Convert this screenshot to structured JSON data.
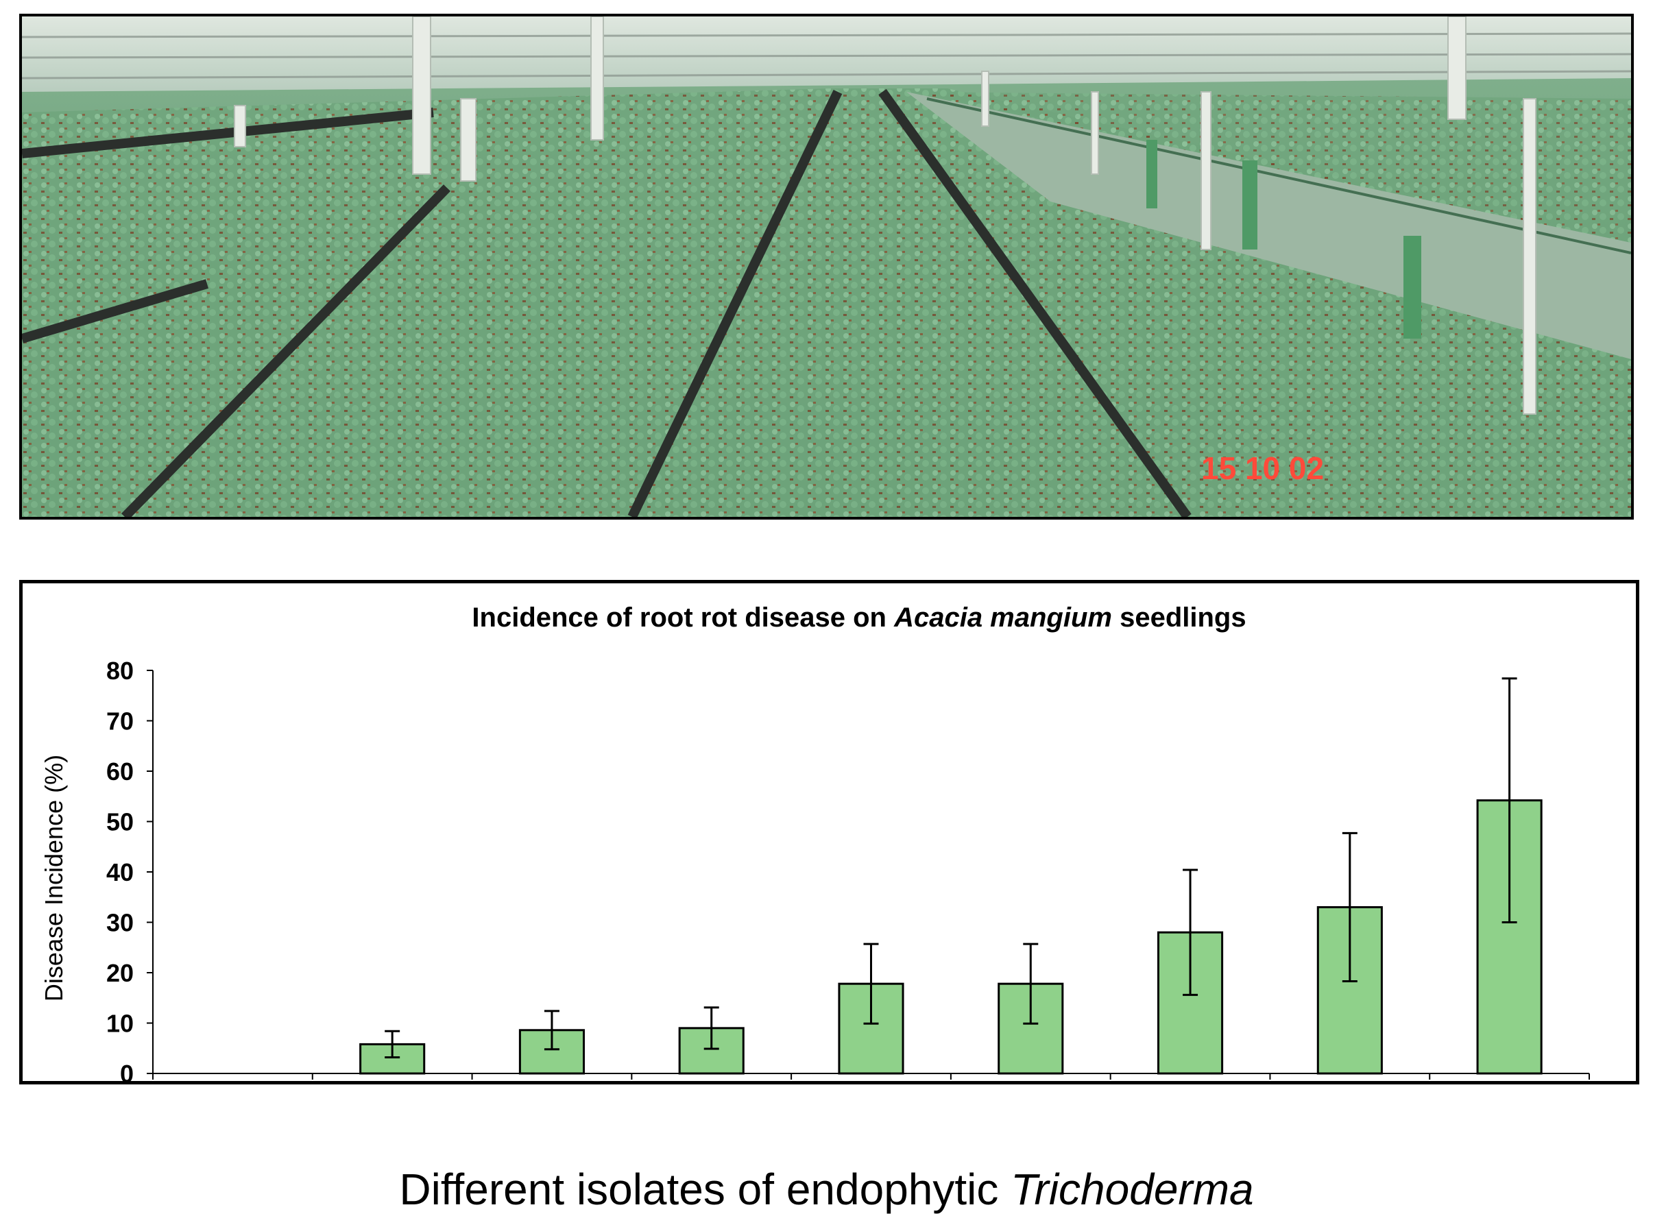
{
  "photo": {
    "description_icon": "nursery-photo",
    "date_stamp": "15 10 02"
  },
  "chart_data": {
    "type": "bar",
    "title_parts": [
      "Incidence of root rot disease on ",
      "Acacia mangium",
      " seedlings"
    ],
    "xlabel_parts": [
      "Different isolates of endophytic ",
      "Trichoderma"
    ],
    "ylabel": "Disease Incidence (%)",
    "ylim": [
      0,
      80
    ],
    "yticks": [
      0,
      10,
      20,
      30,
      40,
      50,
      60,
      70,
      80
    ],
    "categories": [
      "",
      "",
      "",
      "",
      "",
      "",
      "",
      "",
      ""
    ],
    "values": [
      0,
      5.8,
      8.6,
      9.0,
      17.8,
      17.8,
      28.0,
      33.0,
      54.2
    ],
    "errors": [
      0,
      2.6,
      3.8,
      4.1,
      7.9,
      7.9,
      12.4,
      14.7,
      24.2
    ],
    "bar_color": "#8fd18a",
    "grid": false,
    "legend": "none"
  }
}
